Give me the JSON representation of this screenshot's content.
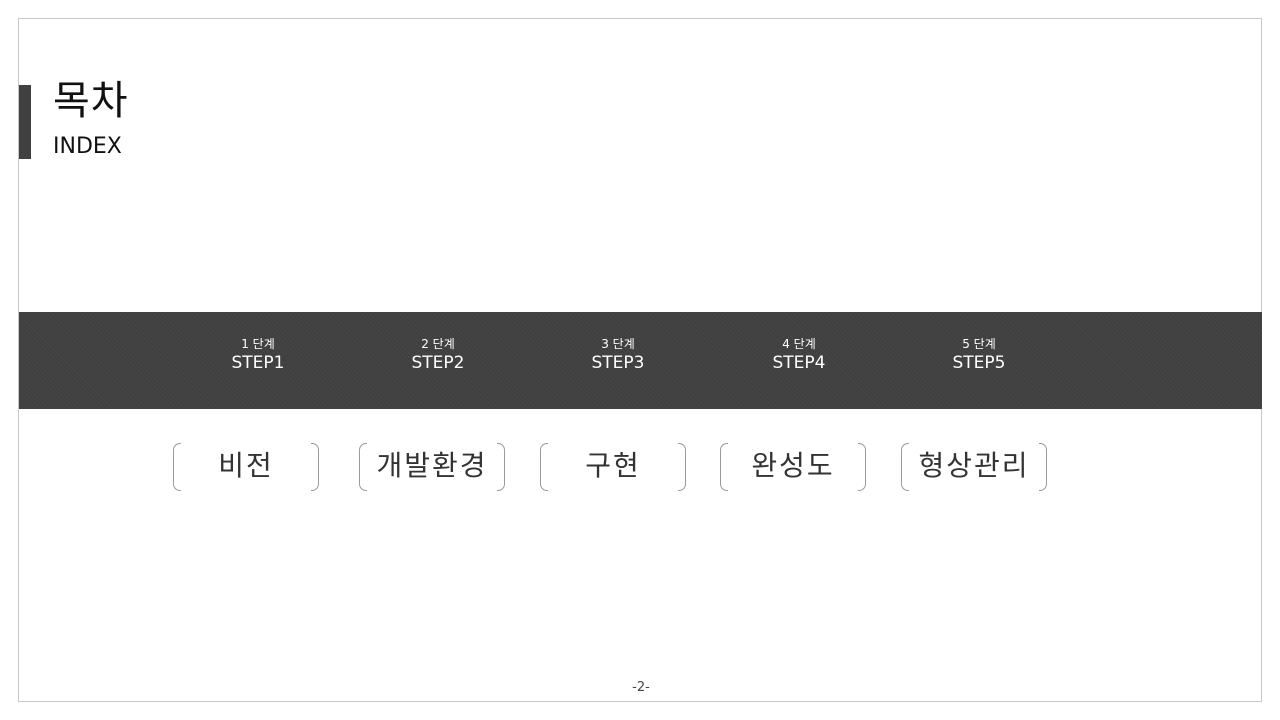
{
  "header": {
    "title": "목차",
    "subtitle": "INDEX"
  },
  "colors": {
    "band": "#404040",
    "accent_bar": "#404040",
    "bracket": "#9a9a9a"
  },
  "steps": [
    {
      "num": "1 단계",
      "name": "STEP1"
    },
    {
      "num": "2 단계",
      "name": "STEP2"
    },
    {
      "num": "3 단계",
      "name": "STEP3"
    },
    {
      "num": "4 단계",
      "name": "STEP4"
    },
    {
      "num": "5 단계",
      "name": "STEP5"
    }
  ],
  "topics": [
    "비전",
    "개발환경",
    "구현",
    "완성도",
    "형상관리"
  ],
  "footer": {
    "page": "-2-"
  }
}
